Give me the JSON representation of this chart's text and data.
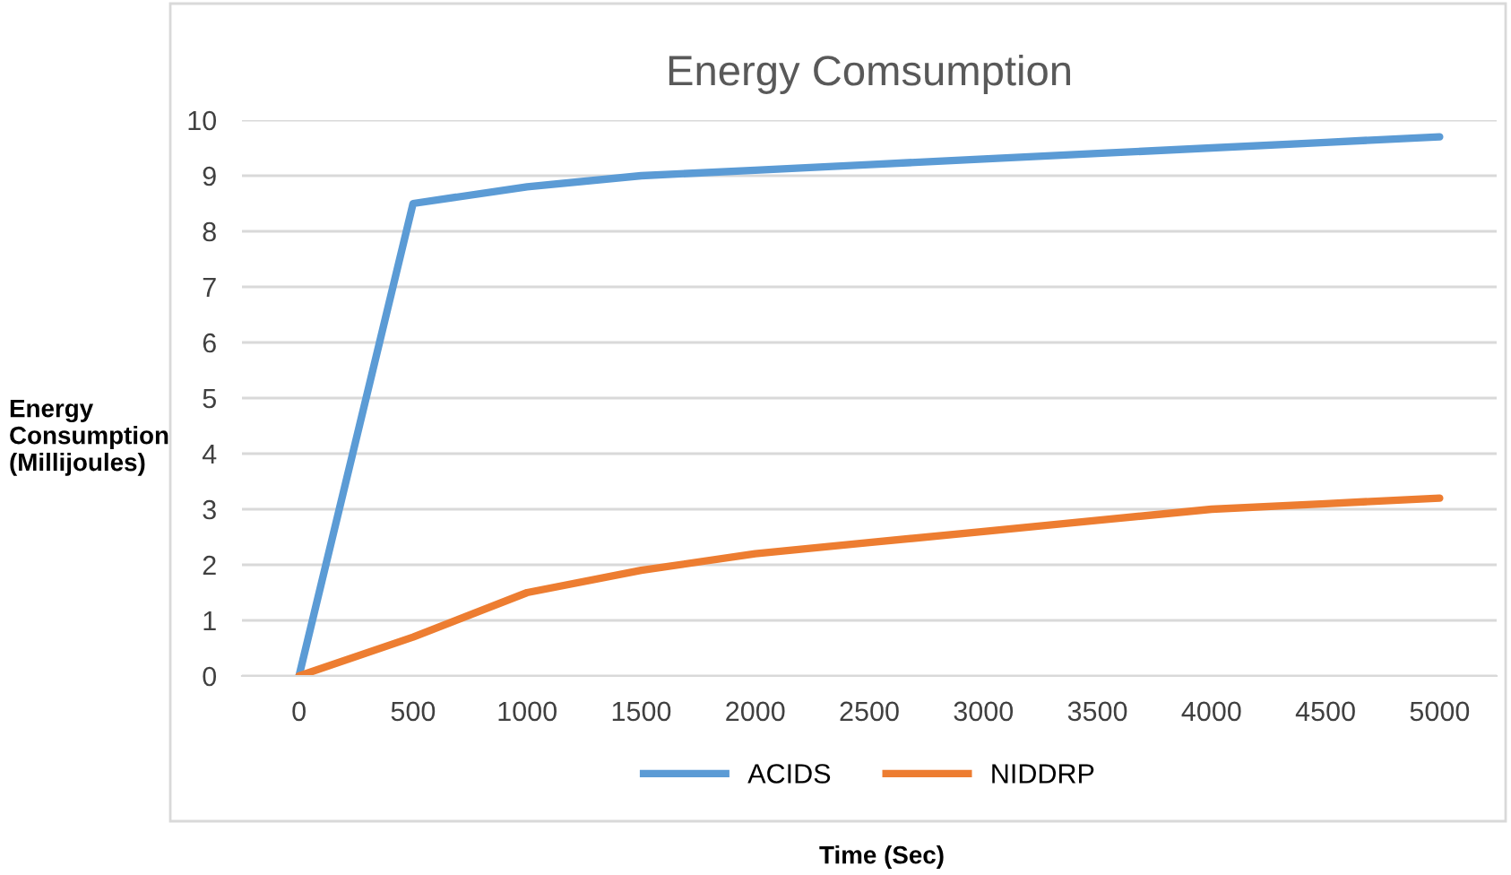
{
  "chart_data": {
    "type": "line",
    "title": "Energy Comsumption",
    "xlabel": "Time (Sec)",
    "ylabel": "Energy\nConsumption\n(Millijoules)",
    "categories": [
      "0",
      "500",
      "1000",
      "1500",
      "2000",
      "2500",
      "3000",
      "3500",
      "4000",
      "4500",
      "5000"
    ],
    "series": [
      {
        "name": "ACIDS",
        "color": "#5b9bd5",
        "values": [
          0,
          8.5,
          8.8,
          9.0,
          9.1,
          9.2,
          9.3,
          9.4,
          9.5,
          9.6,
          9.7
        ]
      },
      {
        "name": "NIDDRP",
        "color": "#ed7d31",
        "values": [
          0,
          0.7,
          1.5,
          1.9,
          2.2,
          2.4,
          2.6,
          2.8,
          3.0,
          3.1,
          3.2
        ]
      }
    ],
    "ylim": [
      0,
      10
    ],
    "yticks": [
      0,
      1,
      2,
      3,
      4,
      5,
      6,
      7,
      8,
      9,
      10
    ],
    "grid": "y",
    "legend": "bottom",
    "marker": "none",
    "line_style": "solid"
  }
}
